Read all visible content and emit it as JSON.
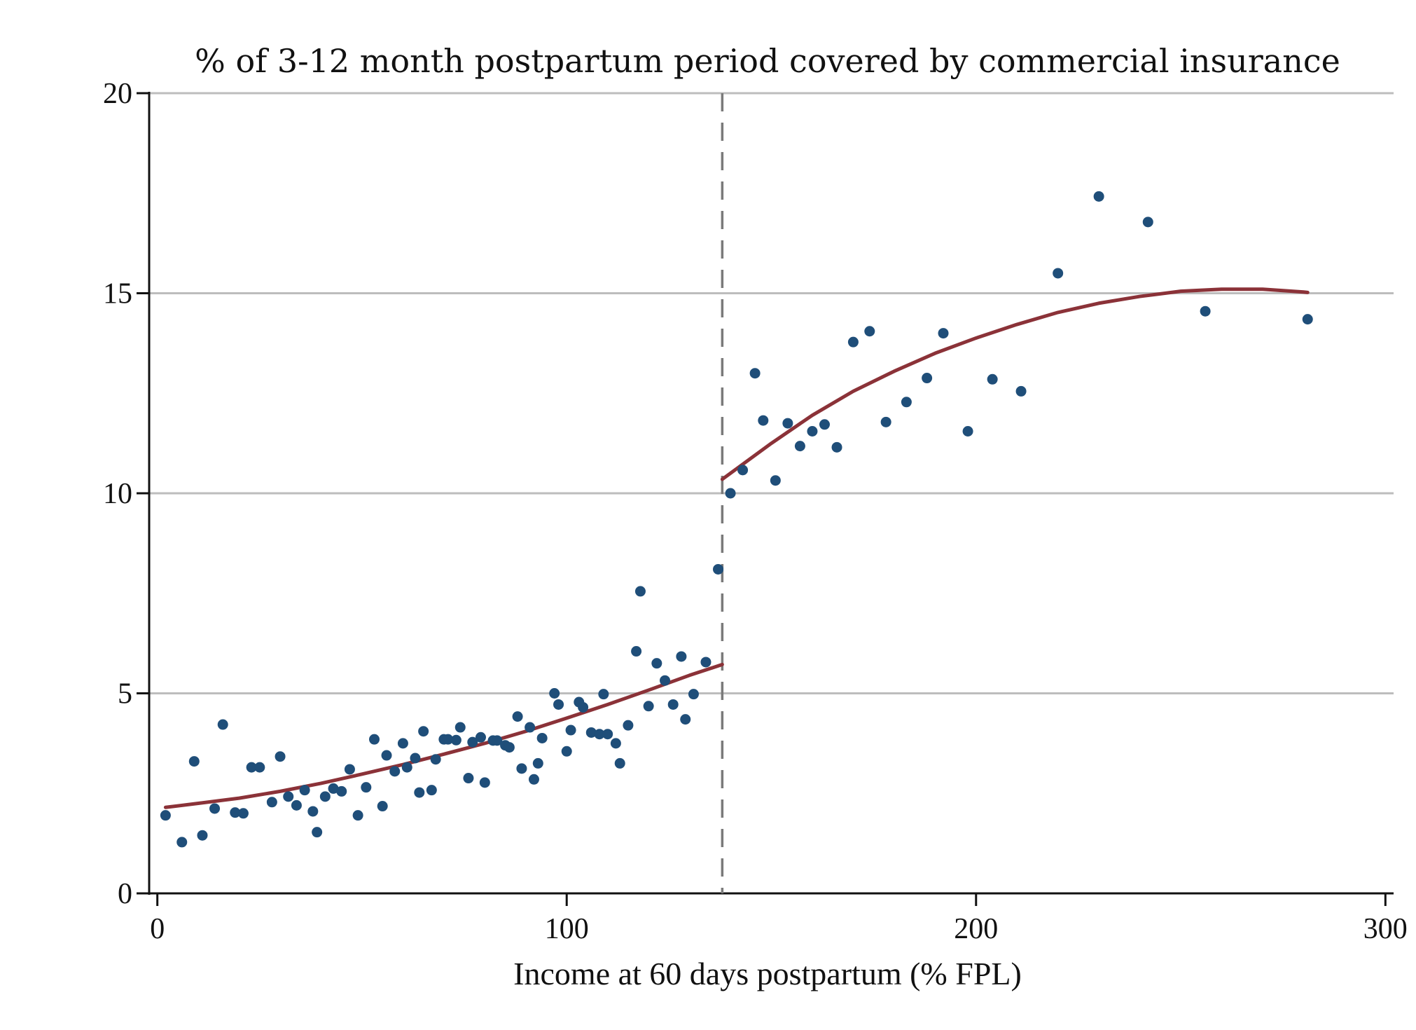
{
  "chart_data": {
    "type": "scatter",
    "title": "% of 3-12 month postpartum period covered by commercial insurance",
    "xlabel": "Income at 60 days postpartum (% FPL)",
    "ylabel": "",
    "xlim": [
      -2,
      302
    ],
    "ylim": [
      0,
      20
    ],
    "xticks": [
      0,
      100,
      200,
      300
    ],
    "yticks": [
      0,
      5,
      10,
      15,
      20
    ],
    "xtick_labels": [
      "0",
      "100",
      "200",
      "300"
    ],
    "ytick_labels": [
      "0",
      "5",
      "10",
      "15",
      "20"
    ],
    "grid": "horizontal",
    "cutoff_x": 138,
    "colors": {
      "points": "#1f4e79",
      "fit": "#8b3238",
      "grid": "#bdbdbd",
      "cutoff": "#7a7a7a",
      "axis": "#111111"
    },
    "series": [
      {
        "type": "scatter",
        "points": [
          [
            2,
            1.95
          ],
          [
            6,
            1.28
          ],
          [
            9,
            3.3
          ],
          [
            11,
            1.45
          ],
          [
            14,
            2.12
          ],
          [
            16,
            4.22
          ],
          [
            19,
            2.02
          ],
          [
            21,
            2.0
          ],
          [
            23,
            3.15
          ],
          [
            25,
            3.15
          ],
          [
            28,
            2.28
          ],
          [
            30,
            3.42
          ],
          [
            32,
            2.42
          ],
          [
            34,
            2.2
          ],
          [
            36,
            2.58
          ],
          [
            38,
            2.05
          ],
          [
            39,
            1.53
          ],
          [
            41,
            2.42
          ],
          [
            43,
            2.62
          ],
          [
            45,
            2.55
          ],
          [
            47,
            3.1
          ],
          [
            49,
            1.95
          ],
          [
            51,
            2.65
          ],
          [
            53,
            3.85
          ],
          [
            55,
            2.18
          ],
          [
            56,
            3.45
          ],
          [
            58,
            3.05
          ],
          [
            60,
            3.75
          ],
          [
            61,
            3.15
          ],
          [
            63,
            3.38
          ],
          [
            64,
            2.52
          ],
          [
            65,
            4.05
          ],
          [
            67,
            2.58
          ],
          [
            68,
            3.35
          ],
          [
            70,
            3.85
          ],
          [
            71,
            3.85
          ],
          [
            73,
            3.83
          ],
          [
            74,
            4.15
          ],
          [
            76,
            2.88
          ],
          [
            77,
            3.78
          ],
          [
            79,
            3.9
          ],
          [
            80,
            2.77
          ],
          [
            82,
            3.82
          ],
          [
            83,
            3.82
          ],
          [
            85,
            3.7
          ],
          [
            86,
            3.65
          ],
          [
            88,
            4.42
          ],
          [
            89,
            3.12
          ],
          [
            91,
            4.15
          ],
          [
            92,
            2.85
          ],
          [
            93,
            3.25
          ],
          [
            94,
            3.88
          ],
          [
            97,
            5.0
          ],
          [
            98,
            4.72
          ],
          [
            100,
            3.55
          ],
          [
            101,
            4.08
          ],
          [
            103,
            4.78
          ],
          [
            104,
            4.65
          ],
          [
            106,
            4.02
          ],
          [
            108,
            3.98
          ],
          [
            109,
            4.98
          ],
          [
            110,
            3.98
          ],
          [
            112,
            3.75
          ],
          [
            113,
            3.25
          ],
          [
            115,
            4.2
          ],
          [
            117,
            6.05
          ],
          [
            118,
            7.55
          ],
          [
            120,
            4.68
          ],
          [
            122,
            5.75
          ],
          [
            124,
            5.32
          ],
          [
            126,
            4.72
          ],
          [
            128,
            5.92
          ],
          [
            129,
            4.35
          ],
          [
            131,
            4.98
          ],
          [
            134,
            5.78
          ],
          [
            137,
            8.1
          ],
          [
            140,
            10.0
          ],
          [
            143,
            10.58
          ],
          [
            146,
            13.0
          ],
          [
            148,
            11.82
          ],
          [
            151,
            10.32
          ],
          [
            154,
            11.75
          ],
          [
            157,
            11.18
          ],
          [
            160,
            11.55
          ],
          [
            163,
            11.72
          ],
          [
            166,
            11.15
          ],
          [
            170,
            13.78
          ],
          [
            174,
            14.05
          ],
          [
            178,
            11.78
          ],
          [
            183,
            12.28
          ],
          [
            188,
            12.88
          ],
          [
            192,
            14.0
          ],
          [
            198,
            11.55
          ],
          [
            204,
            12.85
          ],
          [
            211,
            12.55
          ],
          [
            220,
            15.5
          ],
          [
            230,
            17.42
          ],
          [
            242,
            16.78
          ],
          [
            256,
            14.55
          ],
          [
            281,
            14.35
          ]
        ]
      },
      {
        "type": "line",
        "segment": "below-cutoff",
        "points": [
          [
            2,
            2.15
          ],
          [
            10,
            2.25
          ],
          [
            20,
            2.38
          ],
          [
            30,
            2.55
          ],
          [
            40,
            2.75
          ],
          [
            50,
            2.98
          ],
          [
            60,
            3.22
          ],
          [
            70,
            3.48
          ],
          [
            80,
            3.75
          ],
          [
            90,
            4.05
          ],
          [
            100,
            4.38
          ],
          [
            110,
            4.72
          ],
          [
            120,
            5.08
          ],
          [
            130,
            5.45
          ],
          [
            138,
            5.72
          ]
        ]
      },
      {
        "type": "line",
        "segment": "above-cutoff",
        "points": [
          [
            138,
            10.35
          ],
          [
            150,
            11.25
          ],
          [
            160,
            11.95
          ],
          [
            170,
            12.55
          ],
          [
            180,
            13.05
          ],
          [
            190,
            13.5
          ],
          [
            200,
            13.88
          ],
          [
            210,
            14.22
          ],
          [
            220,
            14.52
          ],
          [
            230,
            14.75
          ],
          [
            240,
            14.92
          ],
          [
            250,
            15.05
          ],
          [
            260,
            15.1
          ],
          [
            270,
            15.1
          ],
          [
            280,
            15.03
          ],
          [
            281,
            15.02
          ]
        ]
      }
    ]
  }
}
